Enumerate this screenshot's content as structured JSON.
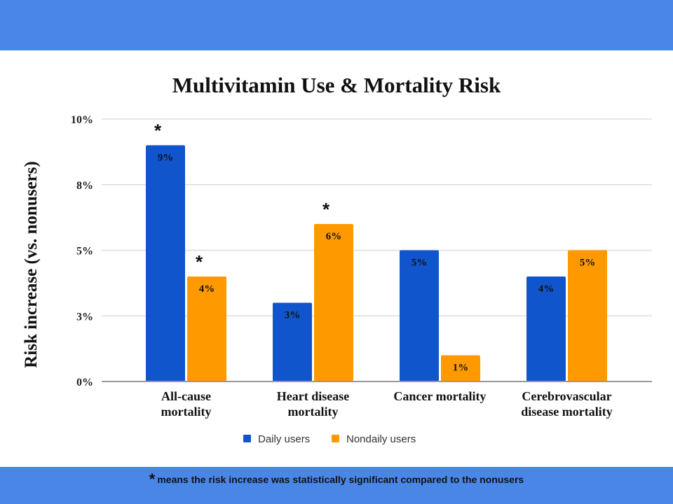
{
  "footnote": {
    "symbol": "*",
    "text": "means the risk increase was statistically significant compared to the nonusers"
  },
  "colors": {
    "banner": "#4a86e5",
    "daily": "#1155cc",
    "nondaily": "#ff9900"
  },
  "chart_data": {
    "type": "bar",
    "title": "Multivitamin Use & Mortality Risk",
    "xlabel": "",
    "ylabel": "Risk increase (vs. nonusers)",
    "ylim": [
      0,
      10
    ],
    "yticks": [
      0,
      2.5,
      5,
      7.5,
      10
    ],
    "ytick_labels": [
      "0%",
      "3%",
      "5%",
      "8%",
      "10%"
    ],
    "grid": true,
    "legend_position": "bottom",
    "categories": [
      [
        "All-cause",
        "mortality"
      ],
      [
        "Heart disease",
        "mortality"
      ],
      [
        "Cancer mortality"
      ],
      [
        "Cerebrovascular",
        "disease mortality"
      ]
    ],
    "series": [
      {
        "name": "Daily users",
        "color": "#1155cc",
        "values": [
          9,
          3,
          5,
          4
        ],
        "labels": [
          "9%",
          "3%",
          "5%",
          "4%"
        ],
        "significant": [
          true,
          false,
          false,
          false
        ]
      },
      {
        "name": "Nondaily users",
        "color": "#ff9900",
        "values": [
          4,
          6,
          1,
          5
        ],
        "labels": [
          "4%",
          "6%",
          "1%",
          "5%"
        ],
        "significant": [
          true,
          true,
          false,
          false
        ]
      }
    ],
    "significance_marker": "*"
  }
}
